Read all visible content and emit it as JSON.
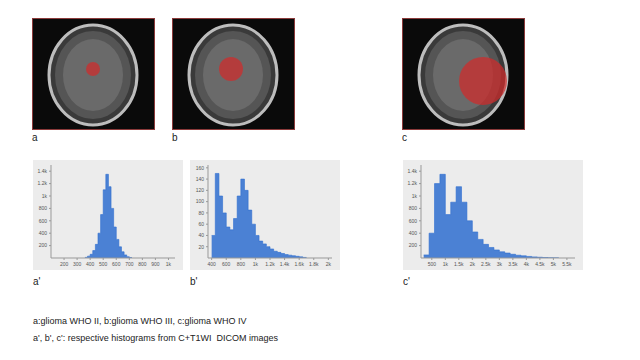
{
  "panels": [
    {
      "label": "a"
    },
    {
      "label": "b"
    },
    {
      "label": "c"
    }
  ],
  "chart_data": [
    {
      "type": "histogram",
      "title": "a'",
      "bins": [
        360,
        380,
        400,
        420,
        440,
        460,
        480,
        500,
        520,
        540,
        560,
        580,
        600,
        620,
        640,
        660,
        680,
        700,
        720
      ],
      "counts": [
        10,
        30,
        60,
        120,
        220,
        400,
        700,
        1100,
        1350,
        1150,
        800,
        500,
        300,
        180,
        100,
        50,
        20,
        8
      ],
      "color": "#2f6fd0",
      "xlim": [
        100,
        1050
      ],
      "xticks": [
        200,
        300,
        400,
        500,
        600,
        700,
        800,
        900,
        {
          "value": 1000,
          "label": "1k"
        }
      ],
      "ylim": [
        0,
        1500
      ],
      "yticks": [
        200,
        400,
        600,
        800,
        {
          "value": 1000,
          "label": "1k"
        },
        {
          "value": 1200,
          "label": "1.2k"
        },
        {
          "value": 1400,
          "label": "1.4k"
        }
      ],
      "grid": false
    },
    {
      "type": "histogram",
      "title": "b'",
      "bins": [
        400,
        450,
        500,
        550,
        600,
        650,
        700,
        750,
        800,
        850,
        900,
        950,
        1000,
        1050,
        1100,
        1150,
        1200,
        1250,
        1300,
        1350,
        1400,
        1450,
        1500,
        1550,
        1600,
        1650,
        1700
      ],
      "counts": [
        40,
        150,
        110,
        80,
        55,
        50,
        70,
        110,
        140,
        120,
        85,
        60,
        40,
        30,
        25,
        20,
        16,
        12,
        10,
        8,
        6,
        5,
        4,
        3,
        2,
        1
      ],
      "color": "#2f6fd0",
      "xlim": [
        350,
        2050
      ],
      "xticks": [
        400,
        600,
        800,
        {
          "value": 1000,
          "label": "1k"
        },
        {
          "value": 1200,
          "label": "1.2k"
        },
        {
          "value": 1400,
          "label": "1.4k"
        },
        {
          "value": 1600,
          "label": "1.6k"
        },
        {
          "value": 1800,
          "label": "1.8k"
        },
        {
          "value": 2000,
          "label": "2k"
        }
      ],
      "ylim": [
        0,
        165
      ],
      "yticks": [
        20,
        40,
        60,
        80,
        100,
        120,
        140,
        160
      ],
      "grid": false
    },
    {
      "type": "histogram",
      "title": "c'",
      "bins": [
        200,
        400,
        600,
        800,
        1000,
        1200,
        1400,
        1600,
        1800,
        2000,
        2200,
        2400,
        2600,
        2800,
        3000,
        3200,
        3400,
        3600,
        3800,
        4000,
        4200,
        4400,
        4600,
        4800,
        5000,
        5200
      ],
      "counts": [
        50,
        400,
        1200,
        1350,
        700,
        900,
        1150,
        900,
        600,
        420,
        300,
        220,
        170,
        130,
        100,
        80,
        60,
        45,
        35,
        25,
        18,
        12,
        8,
        5,
        3
      ],
      "color": "#2f6fd0",
      "xlim": [
        100,
        5800
      ],
      "xticks": [
        500,
        {
          "value": 1000,
          "label": "1k"
        },
        {
          "value": 1500,
          "label": "1.5k"
        },
        {
          "value": 2000,
          "label": "2k"
        },
        {
          "value": 2500,
          "label": "2.5k"
        },
        {
          "value": 3000,
          "label": "3k"
        },
        {
          "value": 3500,
          "label": "3.5k"
        },
        {
          "value": 4000,
          "label": "4k"
        },
        {
          "value": 4500,
          "label": "4.5k"
        },
        {
          "value": 5000,
          "label": "5k"
        },
        {
          "value": 5500,
          "label": "5.5k"
        }
      ],
      "ylim": [
        0,
        1500
      ],
      "yticks": [
        200,
        400,
        600,
        800,
        {
          "value": 1000,
          "label": "1k"
        },
        {
          "value": 1200,
          "label": "1.2k"
        },
        {
          "value": 1400,
          "label": "1.4k"
        }
      ],
      "grid": false
    }
  ],
  "caption": [
    "a:glioma WHO II, b:glioma WHO III, c:glioma WHO IV",
    "a', b', c': respective histograms from C+T1WI  DICOM images"
  ]
}
